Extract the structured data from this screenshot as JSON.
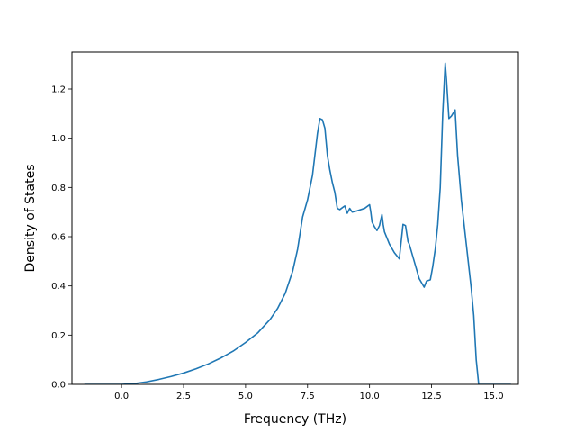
{
  "chart_data": {
    "type": "line",
    "title": "",
    "xlabel": "Frequency (THz)",
    "ylabel": "Density of States",
    "xlim": [
      -2.0,
      16.0
    ],
    "ylim": [
      0.0,
      1.35
    ],
    "xticks": [
      0.0,
      2.5,
      5.0,
      7.5,
      10.0,
      12.5,
      15.0
    ],
    "xtick_labels": [
      "0.0",
      "2.5",
      "5.0",
      "7.5",
      "10.0",
      "12.5",
      "15.0"
    ],
    "yticks": [
      0.0,
      0.2,
      0.4,
      0.6,
      0.8,
      1.0,
      1.2
    ],
    "ytick_labels": [
      "0.0",
      "0.2",
      "0.4",
      "0.6",
      "0.8",
      "1.0",
      "1.2"
    ],
    "grid": false,
    "line_color": "#1f77b4",
    "series": [
      {
        "x": [
          -1.5,
          0.0,
          0.5,
          1.0,
          1.5,
          2.0,
          2.5,
          3.0,
          3.5,
          4.0,
          4.5,
          5.0,
          5.5,
          6.0,
          6.3,
          6.6,
          6.9,
          7.1,
          7.3,
          7.5,
          7.7,
          7.9,
          8.0,
          8.1,
          8.2,
          8.3,
          8.4,
          8.5,
          8.6,
          8.7,
          8.8,
          9.0,
          9.1,
          9.2,
          9.3,
          9.5,
          9.8,
          10.0,
          10.05,
          10.1,
          10.2,
          10.3,
          10.4,
          10.5,
          10.55,
          10.6,
          10.8,
          11.0,
          11.2,
          11.35,
          11.45,
          11.55,
          11.6,
          11.8,
          12.0,
          12.2,
          12.3,
          12.45,
          12.55,
          12.65,
          12.75,
          12.85,
          12.95,
          13.05,
          13.1,
          13.2,
          13.3,
          13.45,
          13.55,
          13.6,
          13.7,
          13.9,
          14.1,
          14.2,
          14.3,
          14.4,
          15.0,
          15.7
        ],
        "y": [
          0.0,
          0.0,
          0.003,
          0.01,
          0.02,
          0.032,
          0.046,
          0.063,
          0.083,
          0.107,
          0.135,
          0.17,
          0.21,
          0.265,
          0.31,
          0.37,
          0.46,
          0.55,
          0.68,
          0.75,
          0.85,
          1.02,
          1.08,
          1.075,
          1.04,
          0.93,
          0.87,
          0.82,
          0.78,
          0.715,
          0.71,
          0.725,
          0.695,
          0.715,
          0.7,
          0.705,
          0.715,
          0.73,
          0.7,
          0.66,
          0.64,
          0.625,
          0.645,
          0.69,
          0.65,
          0.62,
          0.57,
          0.535,
          0.51,
          0.65,
          0.645,
          0.58,
          0.57,
          0.5,
          0.43,
          0.395,
          0.42,
          0.425,
          0.48,
          0.55,
          0.65,
          0.8,
          1.1,
          1.305,
          1.24,
          1.08,
          1.09,
          1.115,
          0.93,
          0.87,
          0.75,
          0.57,
          0.39,
          0.28,
          0.1,
          0.0,
          0.0,
          0.0
        ]
      }
    ]
  }
}
